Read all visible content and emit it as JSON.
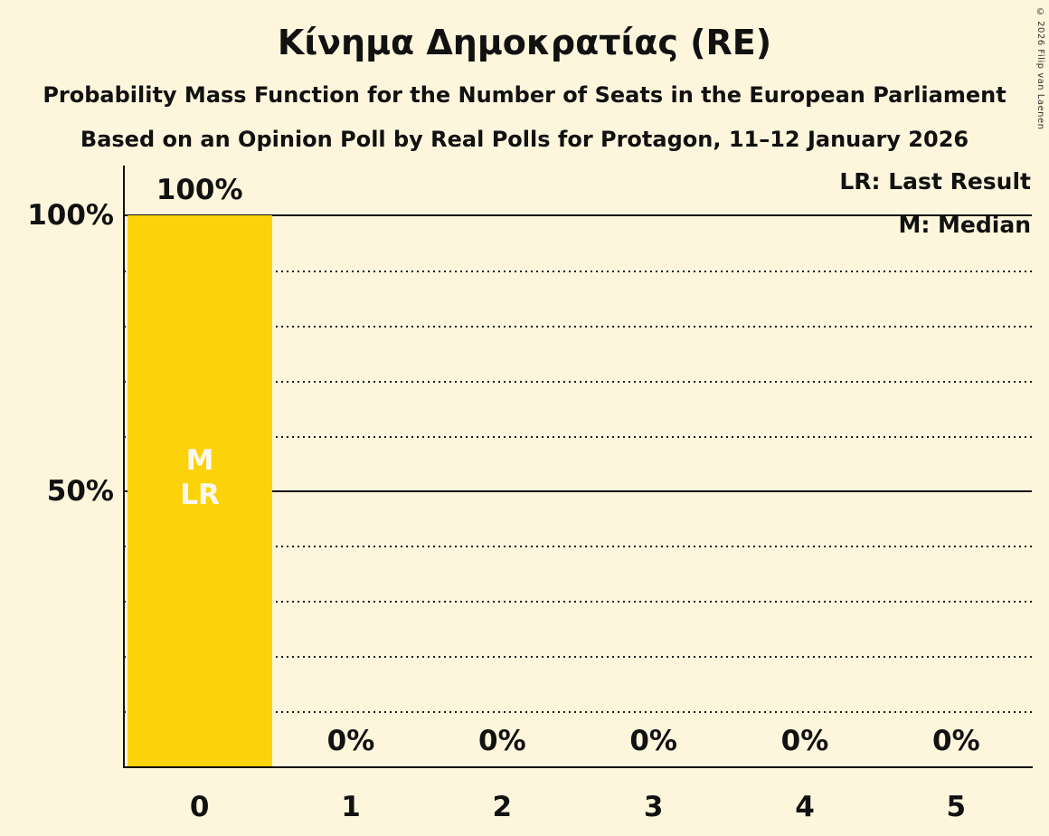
{
  "header": {
    "title": "Κίνημα Δημοκρατίας (RE)",
    "subtitle": "Probability Mass Function for the Number of Seats in the European Parliament",
    "poll_info": "Based on an Opinion Poll by Real Polls for Protagon, 11–12 January 2026"
  },
  "legend": {
    "last_result": "LR: Last Result",
    "median": "M: Median"
  },
  "y_axis": {
    "label_100": "100%",
    "label_50": "50%"
  },
  "bar_annotation": {
    "median": "M",
    "last_result": "LR"
  },
  "copyright": "© 2026 Filip van Laenen",
  "chart_data": {
    "type": "bar",
    "title": "Κίνημα Δημοκρατίας (RE)",
    "subtitle": "Probability Mass Function for the Number of Seats in the European Parliament",
    "source": "Based on an Opinion Poll by Real Polls for Protagon, 11–12 January 2026",
    "categories": [
      "0",
      "1",
      "2",
      "3",
      "4",
      "5"
    ],
    "values": [
      100,
      0,
      0,
      0,
      0,
      0
    ],
    "value_labels": [
      "100%",
      "0%",
      "0%",
      "0%",
      "0%",
      "0%"
    ],
    "xlabel": "",
    "ylabel": "",
    "ylim": [
      0,
      100
    ],
    "y_tick_labels": [
      "100%",
      "50%"
    ],
    "gridlines_dotted": [
      10,
      20,
      30,
      40,
      60,
      70,
      80,
      90
    ],
    "gridlines_solid": [
      50,
      100
    ],
    "median_at_category": "0",
    "last_result_at_category": "0",
    "legend_entries": [
      "LR: Last Result",
      "M: Median"
    ],
    "grid": true,
    "colors": {
      "bar": "#FCD20B",
      "background": "#FDF6DC",
      "text": "#111111",
      "bar_label": "#FAF8EE"
    }
  }
}
